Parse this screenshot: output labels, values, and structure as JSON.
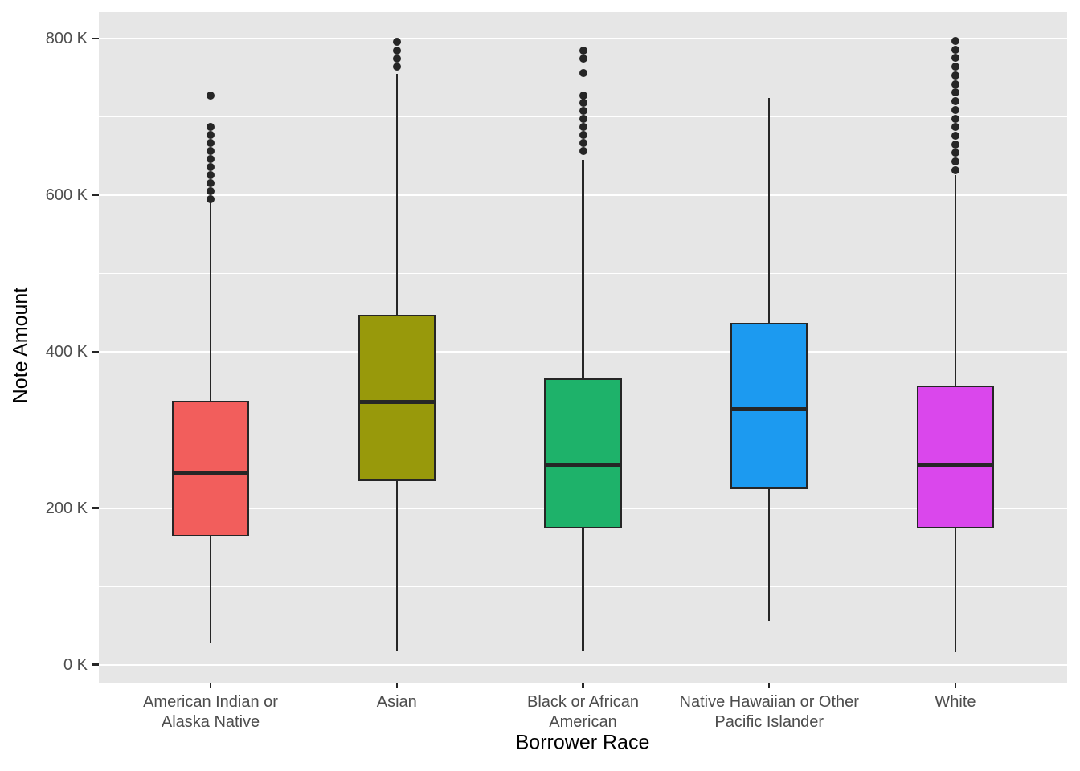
{
  "colors": {
    "page_bg": "#FFFFFF",
    "panel_bg": "#E6E6E6",
    "grid": "#FFFFFF",
    "stroke": "#262626",
    "tick_text": "#4D4D4D",
    "axis_title_text": "#000000"
  },
  "chart_data": {
    "type": "boxplot",
    "title": "",
    "xlabel": "Borrower Race",
    "ylabel": "Note Amount",
    "y_domain_k": [
      -23,
      834
    ],
    "y_major_ticks": [
      {
        "value": 0,
        "label": "0 K"
      },
      {
        "value": 200,
        "label": "200 K"
      },
      {
        "value": 400,
        "label": "400 K"
      },
      {
        "value": 600,
        "label": "600 K"
      },
      {
        "value": 800,
        "label": "800 K"
      }
    ],
    "y_minor_ticks": [
      100,
      300,
      500,
      700
    ],
    "grid": "on",
    "legend": "none",
    "series": [
      {
        "category": "American Indian or Alaska Native",
        "label_lines": [
          "American Indian or",
          "Alaska Native"
        ],
        "fill": "#F25E5C",
        "whisker_low": 27,
        "q1": 165,
        "median": 245,
        "q3": 336,
        "whisker_high": 593,
        "outliers": [
          595,
          605,
          615,
          626,
          636,
          646,
          656,
          667,
          677,
          687,
          727
        ]
      },
      {
        "category": "Asian",
        "label_lines": [
          "Asian"
        ],
        "fill": "#98990B",
        "whisker_low": 18,
        "q1": 236,
        "median": 336,
        "q3": 446,
        "whisker_high": 755,
        "outliers": [
          764,
          774,
          785,
          796
        ]
      },
      {
        "category": "Black or African American",
        "label_lines": [
          "Black or African",
          "American"
        ],
        "fill": "#1EB26A",
        "whisker_low": 18,
        "q1": 175,
        "median": 255,
        "q3": 365,
        "whisker_high": 645,
        "outliers": [
          656,
          667,
          677,
          687,
          697,
          708,
          718,
          727,
          756,
          774,
          785
        ]
      },
      {
        "category": "Native Hawaiian or Other Pacific Islander",
        "label_lines": [
          "Native Hawaiian or Other",
          "Pacific Islander"
        ],
        "fill": "#1C9AF0",
        "whisker_low": 56,
        "q1": 226,
        "median": 326,
        "q3": 436,
        "whisker_high": 724,
        "outliers": []
      },
      {
        "category": "White",
        "label_lines": [
          "White"
        ],
        "fill": "#DA47EC",
        "whisker_low": 16,
        "q1": 175,
        "median": 256,
        "q3": 355,
        "whisker_high": 626,
        "outliers": [
          632,
          643,
          654,
          665,
          676,
          687,
          698,
          709,
          720,
          731,
          742,
          753,
          764,
          775,
          786,
          797
        ]
      }
    ]
  }
}
